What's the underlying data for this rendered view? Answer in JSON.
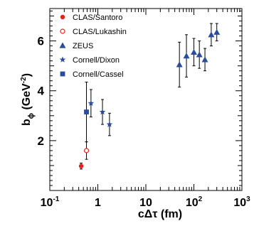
{
  "chart_data": {
    "type": "scatter",
    "title": "",
    "xlabel": "cΔτ (fm)",
    "ylabel": "bϕ (GeV⁻²)",
    "ylabel_main": "b",
    "ylabel_sub": "ϕ",
    "ylabel_unit": " (GeV",
    "ylabel_sup": "-2",
    "ylabel_close": ")",
    "x_scale": "log",
    "xlim": [
      0.1,
      1000
    ],
    "ylim": [
      0,
      7.3
    ],
    "x_ticks": [
      {
        "value": 0.1,
        "base": "10",
        "exp": "-1"
      },
      {
        "value": 1,
        "base": "1",
        "exp": ""
      },
      {
        "value": 10,
        "base": "10",
        "exp": ""
      },
      {
        "value": 100,
        "base": "10",
        "exp": "2"
      },
      {
        "value": 1000,
        "base": "10",
        "exp": "3"
      }
    ],
    "y_ticks": [
      2,
      4,
      6
    ],
    "grid": false,
    "legend_position": "top-left",
    "series": [
      {
        "name": "CLAS/Santoro",
        "marker": "filled-circle",
        "color": "#e8201c",
        "points": [
          {
            "x": 0.45,
            "y": 0.98,
            "err": 0.12
          }
        ]
      },
      {
        "name": "CLAS/Lukashin",
        "marker": "open-circle",
        "color": "#e8201c",
        "points": [
          {
            "x": 0.58,
            "y": 1.6,
            "err": 0.35
          }
        ]
      },
      {
        "name": "ZEUS",
        "marker": "triangle",
        "color": "#2b4c9e",
        "points": [
          {
            "x": 50,
            "y": 5.05,
            "err": 0.9
          },
          {
            "x": 70,
            "y": 5.4,
            "err": 0.85
          },
          {
            "x": 100,
            "y": 5.55,
            "err": 0.55
          },
          {
            "x": 130,
            "y": 5.45,
            "err": 0.55
          },
          {
            "x": 170,
            "y": 5.25,
            "err": 0.45
          },
          {
            "x": 230,
            "y": 6.25,
            "err": 0.45
          },
          {
            "x": 300,
            "y": 6.35,
            "err": 0.35
          }
        ]
      },
      {
        "name": "Cornell/Dixon",
        "marker": "star",
        "color": "#2b4c9e",
        "points": [
          {
            "x": 0.72,
            "y": 3.5,
            "err": 0.55
          },
          {
            "x": 1.25,
            "y": 3.15,
            "err": 0.5
          },
          {
            "x": 1.75,
            "y": 2.65,
            "err": 0.45
          }
        ]
      },
      {
        "name": "Cornell/Cassel",
        "marker": "filled-square",
        "color": "#2b4c9e",
        "points": [
          {
            "x": 0.58,
            "y": 3.15,
            "err": 1.2
          }
        ]
      }
    ]
  }
}
